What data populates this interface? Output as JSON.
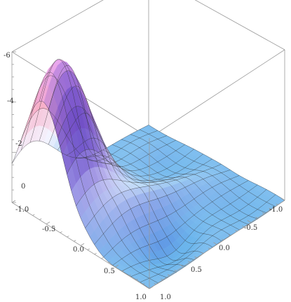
{
  "chart_data": {
    "type": "surface3d",
    "title": "",
    "xlabel": "",
    "ylabel": "",
    "zlabel": "",
    "xlim": [
      -1.0,
      1.0
    ],
    "ylim": [
      -1.0,
      1.0
    ],
    "zlim": [
      0,
      -6
    ],
    "grid": false,
    "box": true,
    "mesh_lines": 15,
    "x_tick_labels": [
      "-1.0",
      "-0.5",
      "0.0",
      "0.5",
      "1.0"
    ],
    "y_tick_labels": [
      "-1.0",
      "-0.5",
      "0.0",
      "0.5",
      "1.0"
    ],
    "z_tick_labels": [
      "0",
      "-2",
      "-4",
      "-6"
    ],
    "peak": {
      "x": -0.55,
      "y": -0.75,
      "z": -6.0
    },
    "trough_region": {
      "x": 0.6,
      "y": 0.5,
      "z": 0.6
    },
    "colors": {
      "low": "#6bb5ec",
      "mid": "#f7a8c3",
      "high": "#e8a7ee",
      "shadow": "#3527c8",
      "mesh": "#2b2b2b",
      "box": "#9a9a9a"
    }
  }
}
